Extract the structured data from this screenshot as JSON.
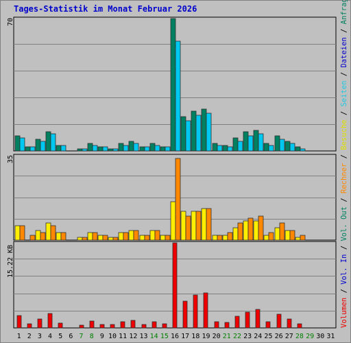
{
  "title": "Tages-Statistik im Monat Februar 2026",
  "colors": {
    "panel": "#c0c0c0",
    "grid": "#808080",
    "title": "#0000cc",
    "anfragen": "#008060",
    "dateien": "#00c8f0",
    "seiten": "#20e0e0",
    "besuche": "#ffee00",
    "rechner": "#ff8800",
    "vol_out": "#008060",
    "vol_in": "#0000cc",
    "volumen": "#ee0000",
    "weekday_label": "#000000",
    "weekend_label": "#008000"
  },
  "legend": [
    {
      "key": "volumen",
      "label": "Volumen",
      "color": "#ee0000"
    },
    {
      "key": "vol_in",
      "label": "Vol. In",
      "color": "#0000cc"
    },
    {
      "key": "vol_out",
      "label": "Vol. Out",
      "color": "#008060"
    },
    {
      "key": "rechner",
      "label": "Rechner",
      "color": "#ff8800"
    },
    {
      "key": "besuche",
      "label": "Besuche",
      "color": "#e0e000"
    },
    {
      "key": "seiten",
      "label": "Seiten",
      "color": "#20c8e0"
    },
    {
      "key": "dateien",
      "label": "Dateien",
      "color": "#0000cc"
    },
    {
      "key": "anfragen",
      "label": "Anfragen",
      "color": "#008060"
    }
  ],
  "legend_separator": " / ",
  "chart_data": {
    "type": "bar",
    "days": [
      "1",
      "2",
      "3",
      "4",
      "5",
      "6",
      "7",
      "8",
      "9",
      "10",
      "11",
      "12",
      "13",
      "14",
      "15",
      "16",
      "17",
      "18",
      "19",
      "20",
      "21",
      "22",
      "23",
      "24",
      "25",
      "26",
      "27",
      "28",
      "29",
      "30",
      "31"
    ],
    "weekend_days": [
      "7",
      "8",
      "14",
      "15",
      "21",
      "22",
      "28",
      "29"
    ],
    "panels": [
      {
        "name": "hits",
        "ymax_label": "70",
        "ylim": [
          0,
          70
        ],
        "series": [
          {
            "name": "Anfragen",
            "key": "anfragen",
            "values": [
              8,
              2,
              6,
              10,
              3,
              0,
              1,
              4,
              2,
              1,
              4,
              5,
              2,
              4,
              2,
              70,
              18,
              21,
              22,
              4,
              3,
              7,
              10,
              11,
              4,
              8,
              5,
              2,
              0,
              0,
              0
            ]
          },
          {
            "name": "Dateien",
            "key": "dateien",
            "values": [
              7,
              2,
              5,
              9,
              3,
              0,
              1,
              3,
              2,
              1,
              3,
              4,
              2,
              3,
              2,
              58,
              16,
              19,
              20,
              3,
              2,
              5,
              8,
              9,
              3,
              6,
              4,
              1,
              0,
              0,
              0
            ]
          }
        ]
      },
      {
        "name": "visits",
        "ymax_label": "35",
        "ylim": [
          0,
          35
        ],
        "series": [
          {
            "name": "Besuche",
            "key": "besuche",
            "values": [
              6,
              0,
              4,
              7,
              3,
              0,
              1,
              3,
              2,
              1,
              3,
              4,
              2,
              4,
              2,
              16,
              12,
              12,
              13,
              2,
              2,
              5,
              8,
              8,
              2,
              5,
              4,
              1,
              0,
              0,
              0
            ]
          },
          {
            "name": "Rechner",
            "key": "rechner",
            "values": [
              6,
              2,
              3,
              6,
              3,
              0,
              1,
              3,
              2,
              1,
              3,
              4,
              2,
              4,
              2,
              34,
              10,
              12,
              13,
              2,
              3,
              7,
              9,
              10,
              3,
              7,
              4,
              2,
              0,
              0,
              0
            ]
          }
        ]
      },
      {
        "name": "volume",
        "ymax_label": "15.22 KB",
        "ylim": [
          0,
          15.22
        ],
        "series": [
          {
            "name": "Volumen",
            "key": "volumen",
            "values": [
              2.2,
              0.7,
              1.6,
              2.6,
              0.9,
              0,
              0.5,
              1.2,
              0.6,
              0.6,
              1.1,
              1.4,
              0.6,
              1.1,
              0.7,
              15.22,
              4.8,
              5.9,
              6.2,
              1.1,
              1.0,
              2.1,
              2.8,
              3.3,
              1.1,
              2.4,
              1.6,
              0.7,
              0,
              0,
              0
            ]
          }
        ]
      }
    ]
  }
}
